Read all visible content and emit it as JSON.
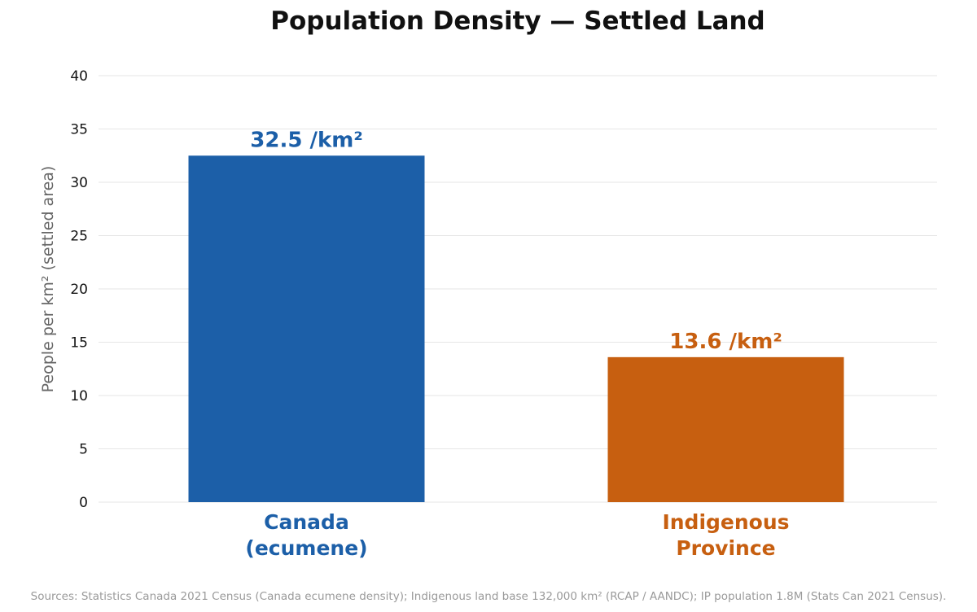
{
  "chart_data": {
    "type": "bar",
    "title": "Population Density — Settled Land",
    "ylabel": "People per km² (settled area)",
    "xlabel": "",
    "ylim": [
      0,
      40
    ],
    "yticks": [
      0,
      5,
      10,
      15,
      20,
      25,
      30,
      35,
      40
    ],
    "grid": true,
    "categories": [
      {
        "line1": "Canada",
        "line2": "(ecumene)"
      },
      {
        "line1": "Indigenous",
        "line2": "Province"
      }
    ],
    "values": [
      32.5,
      13.6
    ],
    "value_labels": [
      "32.5 /km²",
      "13.6 /km²"
    ],
    "colors": [
      "#1c5fa8",
      "#c75f10"
    ]
  },
  "footer": {
    "source": "Sources: Statistics Canada 2021 Census (Canada ecumene density); Indigenous land base 132,000 km² (RCAP / AANDC); IP population 1.8M (Stats Can 2021 Census)."
  }
}
